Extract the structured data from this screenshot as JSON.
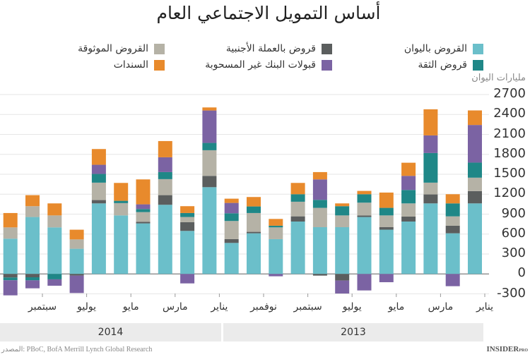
{
  "title": "أساس التمويل الاجتماعي العام",
  "unit_label": "مليارات اليوان",
  "source": "المصدر: PBoC, BofA Merrill Lynch Global Research",
  "brand": {
    "name": "INSIDER",
    "tag": "PRO"
  },
  "chart_data": {
    "type": "bar",
    "stacked": true,
    "x_direction": "right-to-left",
    "title": "أساس التمويل الاجتماعي العام",
    "ylabel": "مليارات اليوان",
    "ylim": [
      -300,
      2700
    ],
    "yticks": [
      2700,
      2400,
      2100,
      1800,
      1500,
      1200,
      900,
      600,
      300,
      0,
      -300
    ],
    "grid": true,
    "legend_position": "top",
    "categories": [
      "2013-01",
      "2013-02",
      "2013-03",
      "2013-04",
      "2013-05",
      "2013-06",
      "2013-07",
      "2013-08",
      "2013-09",
      "2013-10",
      "2013-11",
      "2013-12",
      "2014-01",
      "2014-02",
      "2014-03",
      "2014-04",
      "2014-05",
      "2014-06",
      "2014-07",
      "2014-08",
      "2014-09",
      "2014-10"
    ],
    "x_tick_labels": [
      "يناير",
      "مارس",
      "مايو",
      "يوليو",
      "سبتمبر",
      "نوفمبر",
      "يناير",
      "مارس",
      "مايو",
      "يوليو",
      "سبتمبر"
    ],
    "year_labels": [
      "2013",
      "2014"
    ],
    "series": [
      {
        "name": "القروض باليوان",
        "color": "#6bbfca",
        "values": [
          1062,
          612,
          1062,
          789,
          666,
          857,
          704,
          704,
          789,
          524,
          612,
          467,
          1306,
          648,
          1041,
          761,
          881,
          1062,
          379,
          701,
          857,
          531
        ]
      },
      {
        "name": "قروض بالعملة الأجنبية",
        "color": "#5b5e5e",
        "values": [
          185,
          114,
          135,
          75,
          38,
          24,
          -99,
          -25,
          78,
          0,
          22,
          57,
          170,
          131,
          145,
          25,
          0,
          50,
          -25,
          0,
          -50,
          -53
        ]
      },
      {
        "name": "القروض الموثوقة",
        "color": "#b5b2a6",
        "values": [
          202,
          141,
          177,
          198,
          177,
          192,
          177,
          291,
          220,
          177,
          283,
          273,
          386,
          78,
          241,
          145,
          185,
          262,
          141,
          180,
          163,
          170
        ]
      },
      {
        "name": "قروض الثقة",
        "color": "#1f8787",
        "values": [
          227,
          195,
          446,
          202,
          114,
          127,
          139,
          120,
          113,
          25,
          99,
          116,
          110,
          60,
          106,
          46,
          35,
          131,
          0,
          -81,
          -46,
          -42
        ]
      },
      {
        "name": "قبولات البنك غير المسحوبة",
        "color": "#7b63a3",
        "values": [
          566,
          -184,
          265,
          212,
          -124,
          -248,
          -195,
          308,
          0,
          -35,
          0,
          156,
          488,
          -142,
          223,
          71,
          0,
          138,
          -262,
          -96,
          -120,
          -227
        ]
      },
      {
        "name": "السندات",
        "color": "#e88a2c",
        "values": [
          219,
          138,
          393,
          198,
          230,
          50,
          42,
          110,
          170,
          102,
          142,
          64,
          46,
          103,
          244,
          375,
          269,
          237,
          146,
          181,
          166,
          216
        ]
      }
    ]
  }
}
